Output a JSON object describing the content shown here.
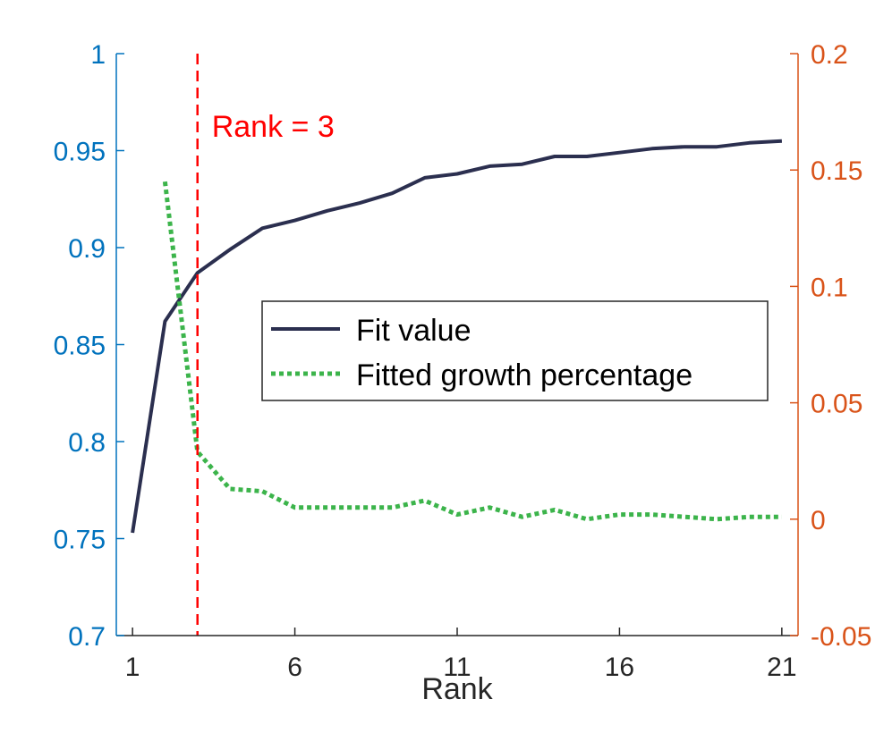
{
  "chart_data": {
    "type": "line",
    "xlabel": "Rank",
    "x_ticks": [
      1,
      6,
      11,
      16,
      21
    ],
    "xlim": [
      0.5,
      21.5
    ],
    "y_left": {
      "lim": [
        0.7,
        1.0
      ],
      "ticks": [
        0.7,
        0.75,
        0.8,
        0.85,
        0.9,
        0.95,
        1
      ],
      "tick_labels": [
        "0.7",
        "0.75",
        "0.8",
        "0.85",
        "0.9",
        "0.95",
        "1"
      ],
      "color": "#0072BD"
    },
    "y_right": {
      "lim": [
        -0.05,
        0.2
      ],
      "ticks": [
        -0.05,
        0,
        0.05,
        0.1,
        0.15,
        0.2
      ],
      "tick_labels": [
        "-0.05",
        "0",
        "0.05",
        "0.1",
        "0.15",
        "0.2"
      ],
      "color": "#D95319"
    },
    "series": [
      {
        "name": "Fit value",
        "axis": "left",
        "color": "#2B2F4F",
        "style": "solid",
        "x": [
          1,
          2,
          3,
          4,
          5,
          6,
          7,
          8,
          9,
          10,
          11,
          12,
          13,
          14,
          15,
          16,
          17,
          18,
          19,
          20,
          21
        ],
        "values": [
          0.753,
          0.862,
          0.887,
          0.899,
          0.91,
          0.914,
          0.919,
          0.923,
          0.928,
          0.936,
          0.938,
          0.942,
          0.943,
          0.947,
          0.947,
          0.949,
          0.951,
          0.952,
          0.952,
          0.954,
          0.955
        ]
      },
      {
        "name": "Fitted growth percentage",
        "axis": "right",
        "color": "#3CB44B",
        "style": "dotted",
        "x": [
          2,
          3,
          4,
          5,
          6,
          7,
          8,
          9,
          10,
          11,
          12,
          13,
          14,
          15,
          16,
          17,
          18,
          19,
          20,
          21
        ],
        "values": [
          0.145,
          0.029,
          0.013,
          0.012,
          0.005,
          0.005,
          0.005,
          0.005,
          0.008,
          0.002,
          0.005,
          0.001,
          0.004,
          0.0,
          0.002,
          0.002,
          0.001,
          0.0,
          0.001,
          0.001
        ]
      }
    ],
    "annotations": [
      {
        "text": "Rank = 3",
        "x": 3,
        "color": "#FF0000",
        "line_style": "dashed"
      }
    ],
    "legend": {
      "position": "center-right",
      "entries": [
        "Fit value",
        "Fitted growth percentage"
      ]
    }
  }
}
